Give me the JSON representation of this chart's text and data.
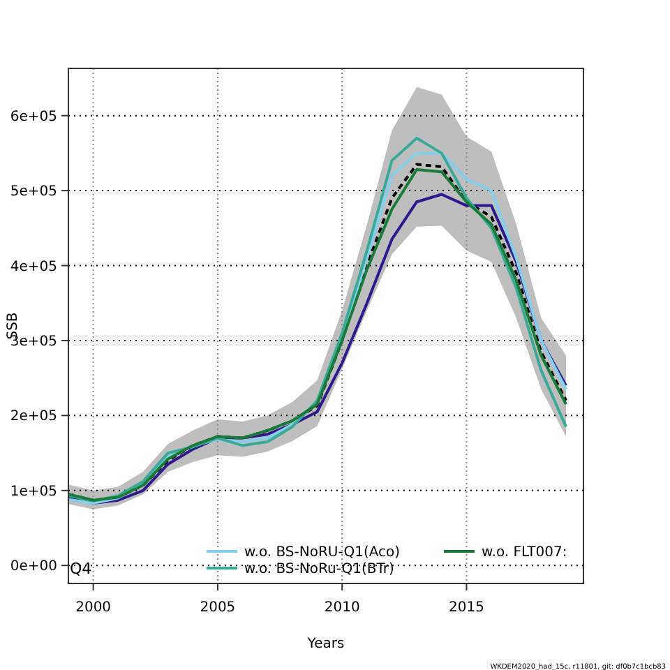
{
  "chart_data": {
    "type": "line",
    "xlabel": "Years",
    "ylabel": "SSB",
    "x": [
      1999,
      2000,
      2001,
      2002,
      2003,
      2004,
      2005,
      2006,
      2007,
      2008,
      2009,
      2010,
      2011,
      2012,
      2013,
      2014,
      2015,
      2016,
      2017,
      2018,
      2019
    ],
    "series": [
      {
        "color": "#000000",
        "line_style": "dashed",
        "values": [
          95000,
          87000,
          91000,
          107000,
          140000,
          160000,
          172000,
          170000,
          180000,
          193000,
          213000,
          300000,
          400000,
          490000,
          535000,
          532000,
          485000,
          465000,
          390000,
          285000,
          220000
        ],
        "lower": [
          82000,
          75000,
          80000,
          95000,
          125000,
          138000,
          147000,
          145000,
          152000,
          166000,
          186000,
          262000,
          340000,
          415000,
          452000,
          453000,
          420000,
          405000,
          330000,
          235000,
          172000
        ],
        "upper": [
          108000,
          100000,
          105000,
          125000,
          162000,
          180000,
          195000,
          192000,
          200000,
          218000,
          247000,
          340000,
          455000,
          580000,
          638000,
          628000,
          572000,
          552000,
          455000,
          330000,
          280000
        ]
      },
      {
        "color": "#2e1a8c",
        "values": [
          90000,
          83000,
          87000,
          100000,
          135000,
          155000,
          170000,
          170000,
          175000,
          188000,
          205000,
          270000,
          350000,
          435000,
          485000,
          495000,
          480000,
          480000,
          405000,
          300000,
          240000
        ]
      },
      {
        "name": "w.o. BS-NoRU-Q1(Aco)",
        "color": "#87ceeb",
        "values": [
          88000,
          83000,
          90000,
          110000,
          145000,
          160000,
          168000,
          165000,
          170000,
          188000,
          218000,
          305000,
          410000,
          520000,
          550000,
          550000,
          515000,
          500000,
          410000,
          300000,
          235000
        ]
      },
      {
        "name": "w.o. BS-NoRu-Q1(BTr)",
        "color": "#3aaa96",
        "values": [
          93000,
          86000,
          93000,
          112000,
          150000,
          158000,
          170000,
          160000,
          165000,
          185000,
          220000,
          310000,
          420000,
          540000,
          570000,
          550000,
          490000,
          450000,
          370000,
          260000,
          185000
        ]
      },
      {
        "name": "w.o. FLT007:",
        "color": "#1a7a3a",
        "values": [
          95000,
          87000,
          91000,
          107000,
          142000,
          160000,
          172000,
          170000,
          180000,
          193000,
          215000,
          300000,
          395000,
          475000,
          528000,
          525000,
          485000,
          455000,
          380000,
          280000,
          215000
        ]
      }
    ],
    "xlim": [
      1999,
      2019.7
    ],
    "ylim": [
      -24000,
      663000
    ],
    "xticks": [
      2000,
      2005,
      2010,
      2015
    ],
    "yticks": [
      {
        "value": 0,
        "label": "0e+00"
      },
      {
        "value": 100000,
        "label": "1e+05"
      },
      {
        "value": 200000,
        "label": "2e+05"
      },
      {
        "value": 300000,
        "label": "3e+05"
      },
      {
        "value": 400000,
        "label": "4e+05"
      },
      {
        "value": 500000,
        "label": "5e+05"
      },
      {
        "value": 600000,
        "label": "6e+05"
      }
    ],
    "grid": true,
    "legend": "bottom",
    "line_style": "solid",
    "annotations": [
      "Q4",
      "WKDEM2020_had_15c, r11801, git: df0b7c1bcb83"
    ]
  }
}
